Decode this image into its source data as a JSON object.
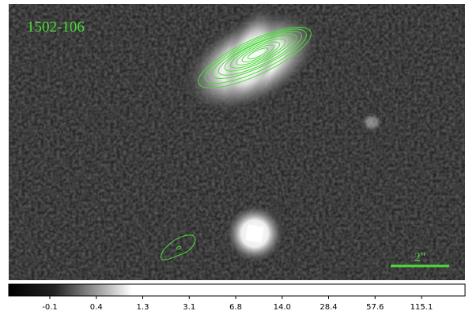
{
  "image": {
    "label": "1502-106",
    "scale_bar": "2\""
  },
  "colorbar": {
    "ticks": [
      "-0.1",
      "0.4",
      "1.3",
      "3.1",
      "6.8",
      "14.0",
      "28.4",
      "57.6",
      "115.1"
    ]
  }
}
